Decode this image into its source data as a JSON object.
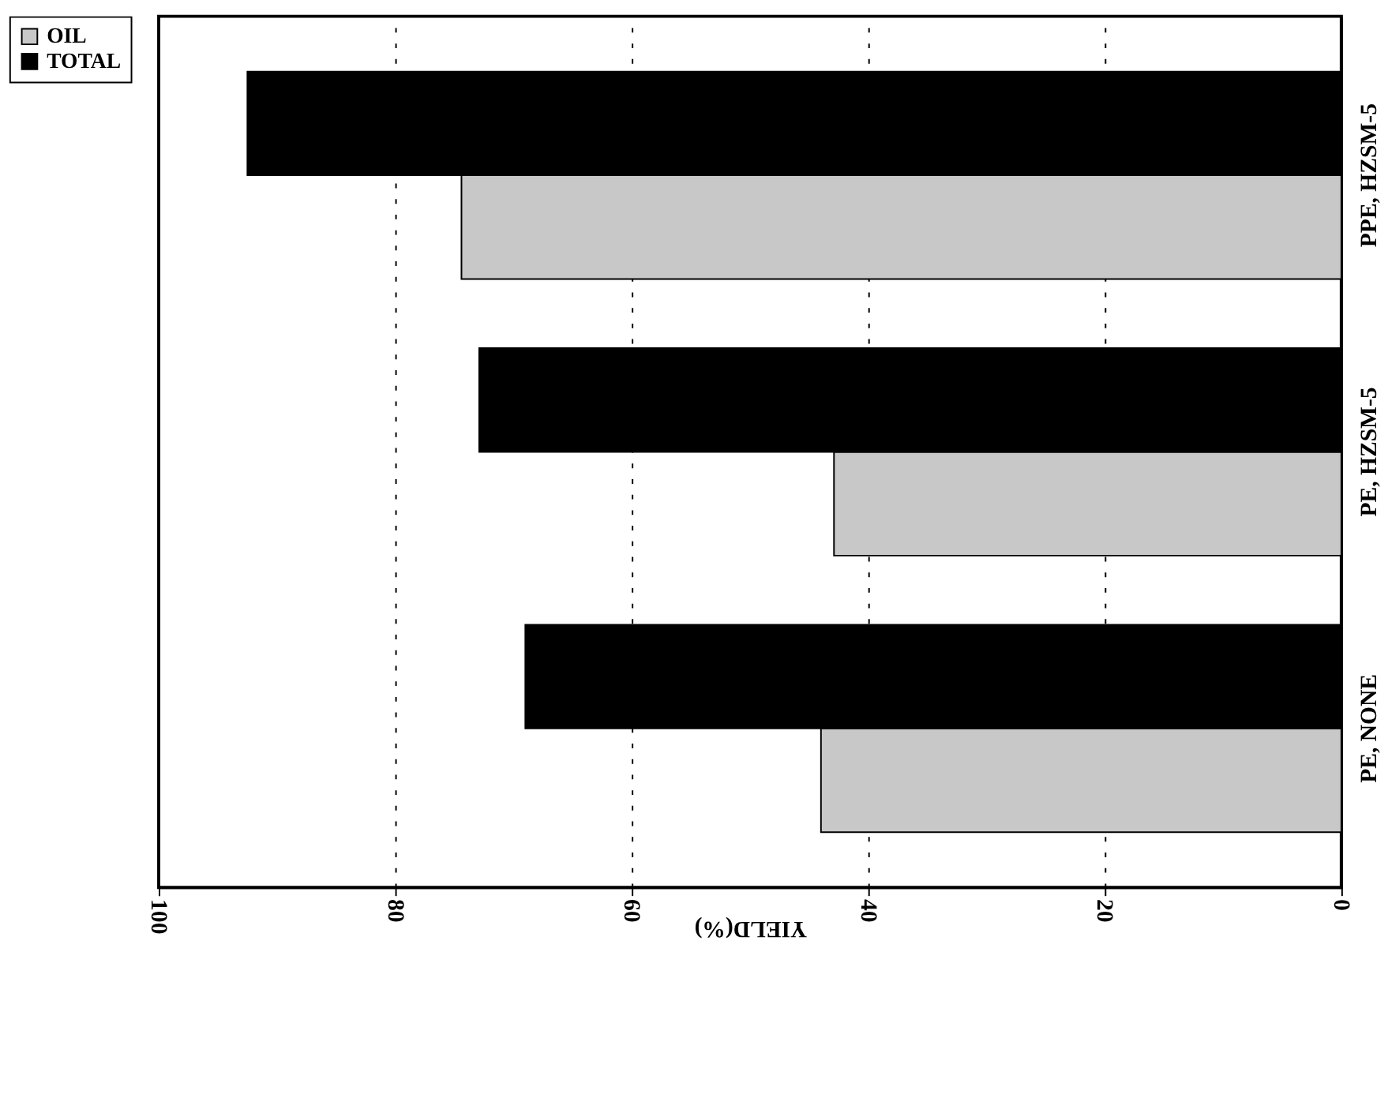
{
  "chart_data": {
    "type": "bar",
    "orientation": "horizontal",
    "xlabel": "YIELD(%)",
    "categories": [
      "PPE, HZSM-5",
      "PE, HZSM-5",
      "PE, NONE"
    ],
    "series": [
      {
        "name": "OIL",
        "color": "#c8c8c8",
        "values": [
          74.4,
          42.9,
          44.0
        ]
      },
      {
        "name": "TOTAL",
        "color": "#000000",
        "values": [
          92.5,
          72.9,
          69.0
        ]
      }
    ],
    "xlim": [
      100,
      0
    ],
    "xticks": [
      0,
      20,
      40,
      60,
      80,
      100
    ],
    "grid": "x",
    "legend": "left"
  }
}
